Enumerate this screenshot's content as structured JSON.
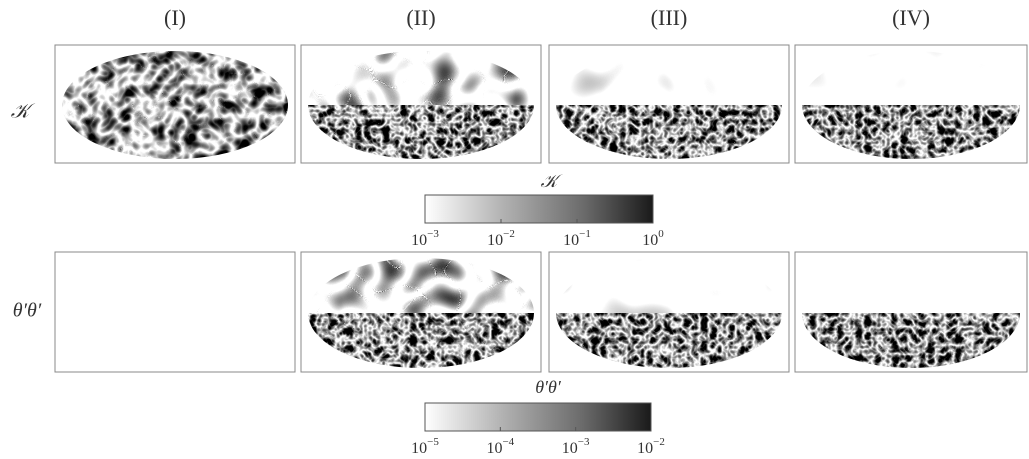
{
  "columns": [
    "(I)",
    "(II)",
    "(III)",
    "(IV)"
  ],
  "rows": [
    "𝒦",
    "θ′θ′"
  ],
  "colorbars": [
    {
      "title": "𝒦",
      "scale": "log",
      "lim": [
        0.001,
        1
      ],
      "ticks": [
        {
          "value": 0.001,
          "base": "10",
          "exponent": "−3"
        },
        {
          "value": 0.01,
          "base": "10",
          "exponent": "−2"
        },
        {
          "value": 0.1,
          "base": "10",
          "exponent": "−1"
        },
        {
          "value": 1,
          "base": "10",
          "exponent": "0"
        }
      ]
    },
    {
      "title": "θ′θ′",
      "scale": "log",
      "lim": [
        1e-05,
        0.01
      ],
      "ticks": [
        {
          "value": 1e-05,
          "base": "10",
          "exponent": "−5"
        },
        {
          "value": 0.0001,
          "base": "10",
          "exponent": "−4"
        },
        {
          "value": 0.001,
          "base": "10",
          "exponent": "−3"
        },
        {
          "value": 0.01,
          "base": "10",
          "exponent": "−2"
        }
      ]
    }
  ]
}
